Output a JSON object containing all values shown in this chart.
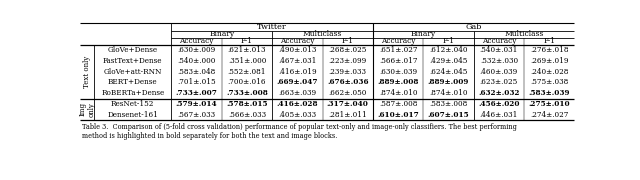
{
  "title_twitter": "Twitter",
  "title_gab": "Gab",
  "col_header_binary": "Binary",
  "col_header_multiclass": "Multiclass",
  "col_header_accuracy": "Accuracy",
  "col_header_f1": "F-1",
  "row_group1_label": "Text only",
  "row_group2_label": "Img\nonly",
  "rows": [
    {
      "group": 0,
      "name": "GloVe+Dense",
      "tw_bin_acc": ".630±.009",
      "tw_bin_f1": ".621±.013",
      "tw_mul_acc": ".490±.013",
      "tw_mul_f1": ".268±.025",
      "gb_bin_acc": ".651±.027",
      "gb_bin_f1": ".612±.040",
      "gb_mul_acc": ".540±.031",
      "gb_mul_f1": ".276±.018",
      "bold": []
    },
    {
      "group": 0,
      "name": "FastText+Dense",
      "tw_bin_acc": ".540±.000",
      "tw_bin_f1": ".351±.000",
      "tw_mul_acc": ".467±.031",
      "tw_mul_f1": ".223±.099",
      "gb_bin_acc": ".566±.017",
      "gb_bin_f1": ".429±.045",
      "gb_mul_acc": ".532±.030",
      "gb_mul_f1": ".269±.019",
      "bold": []
    },
    {
      "group": 0,
      "name": "GloVe+att-RNN",
      "tw_bin_acc": ".583±.048",
      "tw_bin_f1": ".552±.081",
      "tw_mul_acc": ".416±.019",
      "tw_mul_f1": ".239±.033",
      "gb_bin_acc": ".630±.039",
      "gb_bin_f1": ".624±.045",
      "gb_mul_acc": ".460±.039",
      "gb_mul_f1": ".240±.028",
      "bold": []
    },
    {
      "group": 0,
      "name": "BERT+Dense",
      "tw_bin_acc": ".701±.015",
      "tw_bin_f1": ".700±.016",
      "tw_mul_acc": ".669±.047",
      "tw_mul_f1": ".676±.036",
      "gb_bin_acc": ".889±.008",
      "gb_bin_f1": ".889±.009",
      "gb_mul_acc": ".623±.025",
      "gb_mul_f1": ".575±.038",
      "bold": [
        "tw_mul_acc",
        "tw_mul_f1",
        "gb_bin_acc",
        "gb_bin_f1"
      ]
    },
    {
      "group": 0,
      "name": "RoBERTa+Dense",
      "tw_bin_acc": ".733±.007",
      "tw_bin_f1": ".733±.008",
      "tw_mul_acc": ".663±.039",
      "tw_mul_f1": ".662±.050",
      "gb_bin_acc": ".874±.010",
      "gb_bin_f1": ".874±.010",
      "gb_mul_acc": ".632±.032",
      "gb_mul_f1": ".583±.039",
      "bold": [
        "tw_bin_acc",
        "tw_bin_f1",
        "gb_mul_acc",
        "gb_mul_f1"
      ]
    },
    {
      "group": 1,
      "name": "ResNet-152",
      "tw_bin_acc": ".579±.014",
      "tw_bin_f1": ".578±.015",
      "tw_mul_acc": ".416±.028",
      "tw_mul_f1": ".317±.040",
      "gb_bin_acc": ".587±.008",
      "gb_bin_f1": ".583±.008",
      "gb_mul_acc": ".456±.020",
      "gb_mul_f1": ".275±.010",
      "bold": [
        "tw_bin_acc",
        "tw_bin_f1",
        "tw_mul_acc",
        "tw_mul_f1",
        "gb_mul_acc",
        "gb_mul_f1"
      ]
    },
    {
      "group": 1,
      "name": "Densenet-161",
      "tw_bin_acc": ".567±.033",
      "tw_bin_f1": ".566±.033",
      "tw_mul_acc": ".405±.033",
      "tw_mul_f1": ".281±.011",
      "gb_bin_acc": ".610±.017",
      "gb_bin_f1": ".607±.015",
      "gb_mul_acc": ".446±.031",
      "gb_mul_f1": ".274±.027",
      "bold": [
        "gb_bin_acc",
        "gb_bin_f1"
      ]
    }
  ],
  "caption": "Table 3.  Comparison of (5-fold cross validation) performance of popular text-only and image-only classifiers. The best performing\nmethod is highlighted in bold separately for both the text and image blocks.",
  "bg_color": "#ffffff",
  "line_color": "#000000"
}
